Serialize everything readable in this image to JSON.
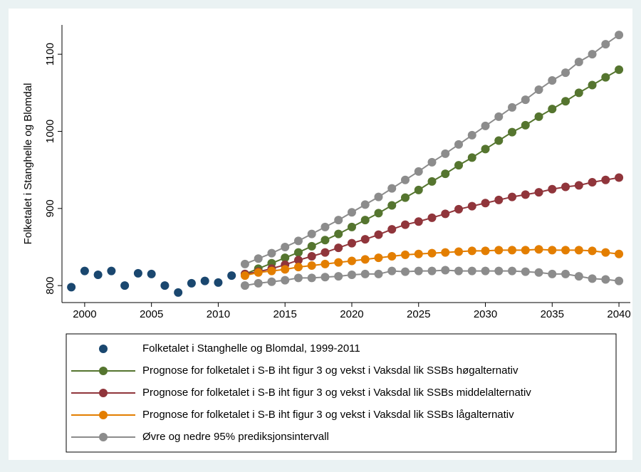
{
  "chart_data": {
    "type": "line",
    "y_label": "Folketalet i Stanghelle og Blomdal",
    "xlim": [
      1998.3,
      2040.85
    ],
    "ylim": [
      778,
      1138
    ],
    "xticks": [
      2000,
      2005,
      2010,
      2015,
      2020,
      2025,
      2030,
      2035,
      2040
    ],
    "yticks": [
      800,
      900,
      1000,
      1100
    ],
    "grid": false,
    "series": [
      {
        "name": "Folketalet i Stanghelle og Blomdal, 1999-2011",
        "color": "#1a476f",
        "mode": "scatter",
        "x": [
          1999,
          2000,
          2001,
          2002,
          2003,
          2004,
          2005,
          2006,
          2007,
          2008,
          2009,
          2010,
          2011
        ],
        "values": [
          798,
          819,
          814,
          819,
          800,
          816,
          815,
          800,
          791,
          803,
          806,
          804,
          813
        ]
      },
      {
        "name": "Prognose for folketalet i S-B iht figur 3 og vekst i Vaksdal lik SSBs høgalternativ",
        "color": "#55752f",
        "mode": "line",
        "x": [
          2012,
          2013,
          2014,
          2015,
          2016,
          2017,
          2018,
          2019,
          2020,
          2021,
          2022,
          2023,
          2024,
          2025,
          2026,
          2027,
          2028,
          2029,
          2030,
          2031,
          2032,
          2033,
          2034,
          2035,
          2036,
          2037,
          2038,
          2039,
          2040
        ],
        "values": [
          815,
          822,
          829,
          836,
          843,
          851,
          859,
          867,
          876,
          885,
          894,
          904,
          914,
          924,
          935,
          945,
          956,
          966,
          977,
          988,
          999,
          1008,
          1019,
          1029,
          1039,
          1050,
          1060,
          1070,
          1080
        ]
      },
      {
        "name": "Prognose for folketalet i S-B iht figur 3 og vekst i Vaksdal lik SSBs middelalternativ",
        "color": "#90353b",
        "mode": "line",
        "x": [
          2012,
          2013,
          2014,
          2015,
          2016,
          2017,
          2018,
          2019,
          2020,
          2021,
          2022,
          2023,
          2024,
          2025,
          2026,
          2027,
          2028,
          2029,
          2030,
          2031,
          2032,
          2033,
          2034,
          2035,
          2036,
          2037,
          2038,
          2039,
          2040
        ],
        "values": [
          815,
          818,
          822,
          827,
          833,
          838,
          843,
          849,
          855,
          860,
          866,
          873,
          879,
          883,
          888,
          893,
          899,
          903,
          907,
          911,
          915,
          918,
          921,
          925,
          928,
          930,
          934,
          937,
          940
        ]
      },
      {
        "name": "Prognose for folketalet i S-B iht figur 3 og vekst i Vaksdal lik SSBs lågalternativ",
        "color": "#e37e00",
        "mode": "line",
        "x": [
          2012,
          2013,
          2014,
          2015,
          2016,
          2017,
          2018,
          2019,
          2020,
          2021,
          2022,
          2023,
          2024,
          2025,
          2026,
          2027,
          2028,
          2029,
          2030,
          2031,
          2032,
          2033,
          2034,
          2035,
          2036,
          2037,
          2038,
          2039,
          2040
        ],
        "values": [
          813,
          817,
          819,
          821,
          824,
          826,
          828,
          830,
          832,
          834,
          836,
          838,
          840,
          841,
          842,
          843,
          844,
          845,
          845,
          846,
          846,
          846,
          847,
          846,
          846,
          846,
          845,
          843,
          841
        ]
      },
      {
        "name": "Øvre og nedre 95% prediksjonsintervall",
        "color": "#8c8c8c",
        "mode": "line",
        "x": [
          2012,
          2013,
          2014,
          2015,
          2016,
          2017,
          2018,
          2019,
          2020,
          2021,
          2022,
          2023,
          2024,
          2025,
          2026,
          2027,
          2028,
          2029,
          2030,
          2031,
          2032,
          2033,
          2034,
          2035,
          2036,
          2037,
          2038,
          2039,
          2040
        ],
        "values": [
          828,
          835,
          842,
          850,
          858,
          867,
          876,
          885,
          895,
          905,
          915,
          926,
          937,
          948,
          960,
          971,
          983,
          995,
          1007,
          1019,
          1031,
          1041,
          1054,
          1066,
          1076,
          1090,
          1100,
          1113,
          1125
        ]
      },
      {
        "color": "#8c8c8c",
        "mode": "line",
        "x": [
          2012,
          2013,
          2014,
          2015,
          2016,
          2017,
          2018,
          2019,
          2020,
          2021,
          2022,
          2023,
          2024,
          2025,
          2026,
          2027,
          2028,
          2029,
          2030,
          2031,
          2032,
          2033,
          2034,
          2035,
          2036,
          2037,
          2038,
          2039,
          2040
        ],
        "values": [
          800,
          803,
          805,
          807,
          810,
          810,
          811,
          812,
          814,
          815,
          815,
          819,
          818,
          819,
          819,
          820,
          819,
          819,
          819,
          819,
          819,
          818,
          817,
          815,
          815,
          812,
          809,
          808,
          806
        ]
      }
    ]
  }
}
